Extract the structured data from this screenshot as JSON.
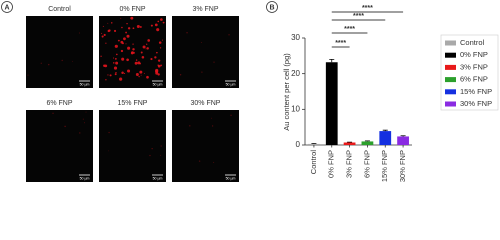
{
  "panel_a": {
    "label": "A",
    "images": [
      {
        "title": "Control",
        "scale_bar": "50 µm"
      },
      {
        "title": "0% FNP",
        "scale_bar": "50 µm"
      },
      {
        "title": "3% FNP",
        "scale_bar": "50 µm"
      },
      {
        "title": "6% FNP",
        "scale_bar": "50 µm"
      },
      {
        "title": "15% FNP",
        "scale_bar": "50 µm"
      },
      {
        "title": "30% FNP",
        "scale_bar": "50 µm"
      }
    ]
  },
  "chart_data": {
    "type": "bar",
    "panel_label": "B",
    "y_label": "Au content per cell (pg)",
    "categories": [
      "Control",
      "0% FNP",
      "3% FNP",
      "6% FNP",
      "15% FNP",
      "30% FNP"
    ],
    "values": [
      0.3,
      23.2,
      0.7,
      1.0,
      3.9,
      2.4
    ],
    "errors": [
      0.15,
      0.8,
      0.1,
      0.15,
      0.25,
      0.2
    ],
    "colors": [
      "#a9a9a9",
      "#000000",
      "#e8191a",
      "#2ca02c",
      "#1530e0",
      "#8a2be2"
    ],
    "ylim": [
      0,
      30
    ],
    "yticks": [
      0,
      10,
      20,
      30
    ],
    "annotations": [
      {
        "text": "****",
        "pair": [
          1,
          5
        ]
      },
      {
        "text": "****",
        "pair": [
          1,
          4
        ]
      },
      {
        "text": "****",
        "pair": [
          1,
          3
        ]
      },
      {
        "text": "****",
        "pair": [
          1,
          2
        ]
      }
    ]
  }
}
